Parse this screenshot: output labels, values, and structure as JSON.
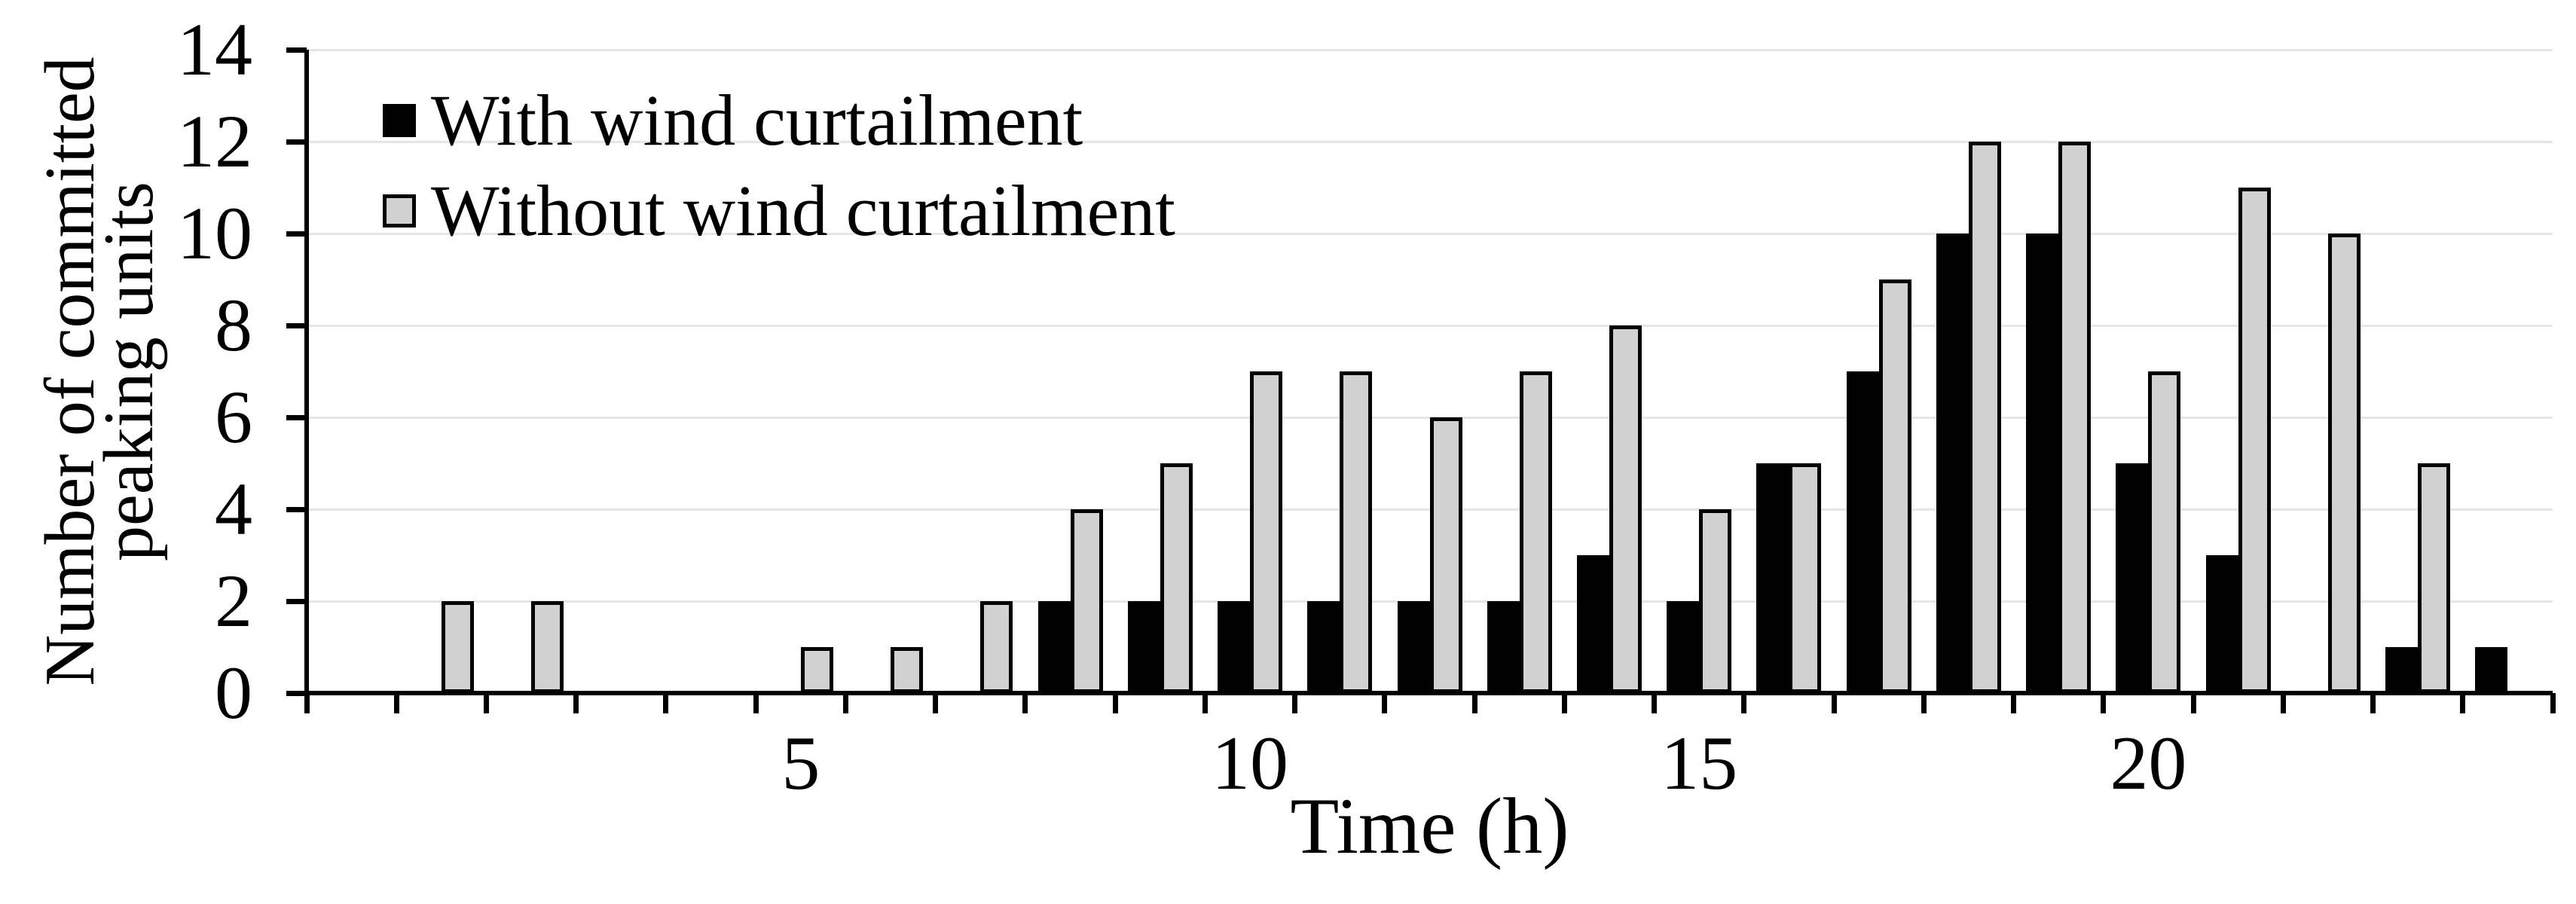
{
  "chart_data": {
    "type": "bar",
    "title": "",
    "xlabel": "Time (h)",
    "ylabel": "Number of committed peaking units",
    "ylabel_lines": [
      "Number of committed",
      "peaking units"
    ],
    "categories": [
      1,
      2,
      3,
      4,
      5,
      6,
      7,
      8,
      9,
      10,
      11,
      12,
      13,
      14,
      15,
      16,
      17,
      18,
      19,
      20,
      21,
      22,
      23,
      24
    ],
    "series": [
      {
        "name": "With wind curtailment",
        "color": "#000000",
        "values": [
          0,
          0,
          0,
          0,
          0,
          0,
          0,
          2,
          2,
          2,
          2,
          2,
          2,
          3,
          2,
          5,
          7,
          10,
          10,
          5,
          3,
          0,
          1,
          1
        ]
      },
      {
        "name": "Without wind curtailment",
        "color": "#d1d1d1",
        "values": [
          2,
          2,
          0,
          0,
          1,
          1,
          2,
          4,
          5,
          7,
          7,
          6,
          7,
          8,
          4,
          5,
          9,
          12,
          12,
          7,
          11,
          10,
          5,
          0
        ]
      }
    ],
    "ylim": [
      0,
      14
    ],
    "yticks": [
      0,
      2,
      4,
      6,
      8,
      10,
      12,
      14
    ],
    "xticks_labeled": [
      5,
      10,
      15,
      20
    ],
    "grid": "horizontal",
    "legend_position": "top-left"
  },
  "colors": {
    "bar_with": "#000000",
    "bar_without": "#d1d1d1",
    "bar_outline": "#000000",
    "gridline": "#e6e6e6",
    "axis": "#000000",
    "background": "#ffffff",
    "text": "#000000"
  }
}
